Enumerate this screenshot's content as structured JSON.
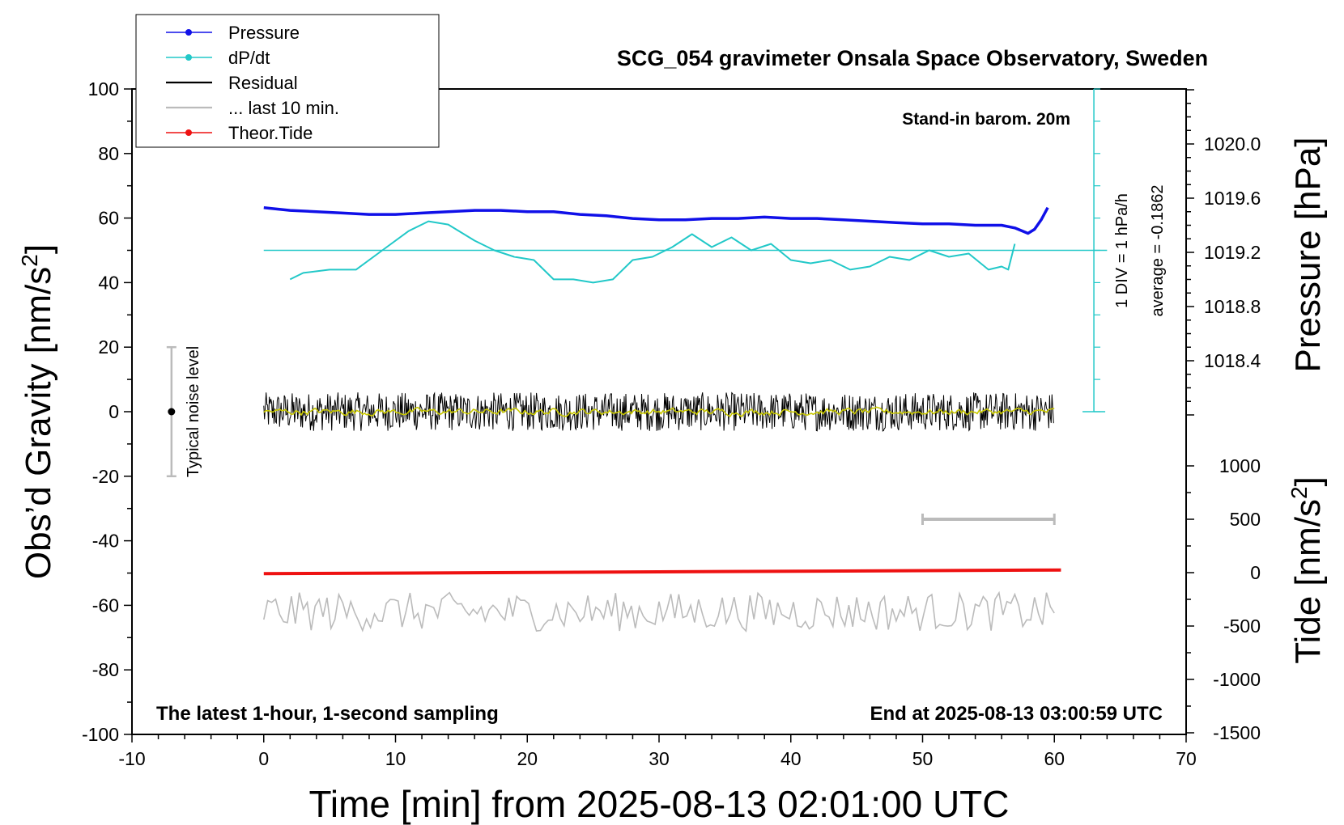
{
  "chart_data": {
    "type": "line",
    "title": "SCG_054 gravimeter Onsala Space Observatory, Sweden",
    "xlabel": "Time [min] from 2025-08-13 02:01:00 UTC",
    "ylabel_left_main": "Obs’d Gravity [nm/s",
    "ylabel_left_sup": "2",
    "ylabel_left_tail": "]",
    "ylabel_right_pressure": "Pressure [hPa]",
    "ylabel_right_tide_main": "Tide [nm/s",
    "ylabel_right_tide_sup": "2",
    "ylabel_right_tide_tail": "]",
    "xlim": [
      -10,
      70
    ],
    "ylim": [
      -100,
      100
    ],
    "pressure_ylim": [
      1018.0,
      1020.4
    ],
    "tide_ylim": [
      -1500,
      1000
    ],
    "x_ticks": [
      "-10",
      "0",
      "10",
      "20",
      "30",
      "40",
      "50",
      "60",
      "70"
    ],
    "y_ticks": [
      "100",
      "80",
      "60",
      "40",
      "20",
      "0",
      "-20",
      "-40",
      "-60",
      "-80",
      "-100"
    ],
    "pressure_ticks": [
      "1020.0",
      "1019.6",
      "1019.2",
      "1018.8",
      "1018.4"
    ],
    "tide_ticks": [
      "1000",
      "500",
      "0",
      "-500",
      "-1000",
      "-1500"
    ],
    "legend": {
      "position": "top-left",
      "entries": [
        {
          "label": "Pressure",
          "color": "#1010e8",
          "marker": true
        },
        {
          "label": "dP/dt",
          "color": "#22c8c8",
          "marker": true
        },
        {
          "label": "Residual",
          "color": "#000000",
          "marker": false
        },
        {
          "label": "... last 10 min.",
          "color": "#bbbbbb",
          "marker": false
        },
        {
          "label": "Theor.Tide",
          "color": "#ee1111",
          "marker": true
        }
      ]
    },
    "annotations": {
      "stand_in": "Stand-in barom. 20m",
      "div_label": "1 DIV = 1 hPa/h",
      "average_label": "average = -0.1862",
      "noise_label": "Typical noise level",
      "bottom_left": "The latest 1-hour, 1-second sampling",
      "bottom_right": "End at 2025-08-13 03:00:59 UTC"
    },
    "series": [
      {
        "name": "Pressure",
        "units": "hPa",
        "x": [
          0,
          2,
          4,
          6,
          8,
          10,
          12,
          14,
          16,
          18,
          20,
          22,
          24,
          26,
          28,
          30,
          32,
          34,
          36,
          38,
          40,
          42,
          44,
          46,
          48,
          50,
          52,
          54,
          56,
          57,
          58,
          58.5,
          59,
          59.5
        ],
        "values": [
          1019.53,
          1019.51,
          1019.5,
          1019.49,
          1019.48,
          1019.48,
          1019.49,
          1019.5,
          1019.51,
          1019.51,
          1019.5,
          1019.5,
          1019.48,
          1019.47,
          1019.45,
          1019.44,
          1019.44,
          1019.45,
          1019.45,
          1019.46,
          1019.45,
          1019.45,
          1019.44,
          1019.43,
          1019.42,
          1019.41,
          1019.41,
          1019.4,
          1019.4,
          1019.38,
          1019.34,
          1019.37,
          1019.44,
          1019.53
        ]
      },
      {
        "name": "dP/dt",
        "units": "gravity-axis",
        "x": [
          2,
          3,
          5,
          7,
          9,
          11,
          12.5,
          14,
          16,
          17.5,
          19,
          20.5,
          22,
          23.5,
          25,
          26.5,
          28,
          29.5,
          31,
          32.5,
          34,
          35.5,
          37,
          38.5,
          40,
          41.5,
          43,
          44.5,
          46,
          47.5,
          49,
          50.5,
          52,
          53.5,
          55,
          56,
          56.5,
          57
        ],
        "values": [
          41,
          43,
          44,
          44,
          50,
          56,
          59,
          58,
          53,
          50,
          48,
          47,
          41,
          41,
          40,
          41,
          47,
          48,
          51,
          55,
          51,
          54,
          50,
          52,
          47,
          46,
          47,
          44,
          45,
          48,
          47,
          50,
          48,
          49,
          44,
          45,
          44,
          52
        ]
      },
      {
        "name": "Theor.Tide",
        "units": "nm/s2",
        "x": [
          0,
          60.5
        ],
        "values": [
          -10,
          25
        ]
      },
      {
        "name": "Residual",
        "units": "nm/s2",
        "x_range": [
          0,
          60
        ],
        "center": 0,
        "amplitude": 6
      },
      {
        "name": "Residual (smoothed)",
        "units": "nm/s2",
        "x_range": [
          0,
          60
        ],
        "center": 0,
        "amplitude": 2,
        "color": "#c8c800"
      },
      {
        "name": "... last 10 min.",
        "units": "nm/s2",
        "x_range": [
          0,
          60
        ],
        "center": -62,
        "amplitude": 6
      }
    ],
    "noise_bar": {
      "x": -7,
      "y_low": -20,
      "y_high": 20,
      "y_mid": 0
    },
    "gray_bar": {
      "x_start": 50,
      "x_end": 60,
      "tide_value": 500
    },
    "reference_line": {
      "y": 50,
      "x_start": 0,
      "x_end": 64
    }
  }
}
